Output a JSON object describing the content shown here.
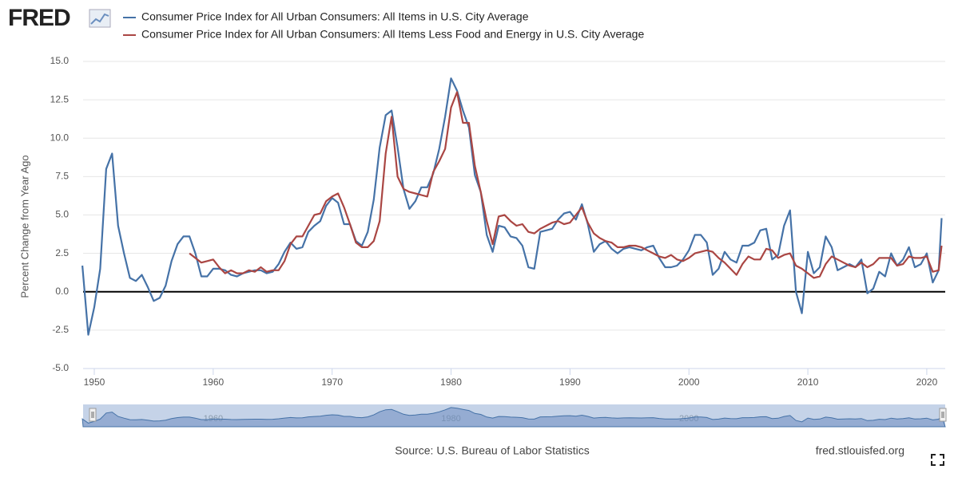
{
  "chart_data": {
    "type": "line",
    "logo": "FRED",
    "y_label": "Percent Change from Year Ago",
    "source": "Source: U.S. Bureau of Labor Statistics",
    "site": "fred.stlouisfed.org",
    "x": [
      1949,
      1949.5,
      1950,
      1950.5,
      1951,
      1951.5,
      1952,
      1952.5,
      1953,
      1953.5,
      1954,
      1954.5,
      1955,
      1955.5,
      1956,
      1956.5,
      1957,
      1957.5,
      1958,
      1958.5,
      1959,
      1959.5,
      1960,
      1960.5,
      1961,
      1961.5,
      1962,
      1962.5,
      1963,
      1963.5,
      1964,
      1964.5,
      1965,
      1965.5,
      1966,
      1966.5,
      1967,
      1967.5,
      1968,
      1968.5,
      1969,
      1969.5,
      1970,
      1970.5,
      1971,
      1971.5,
      1972,
      1972.5,
      1973,
      1973.5,
      1974,
      1974.5,
      1975,
      1975.5,
      1976,
      1976.5,
      1977,
      1977.5,
      1978,
      1978.5,
      1979,
      1979.5,
      1980,
      1980.5,
      1981,
      1981.5,
      1982,
      1982.5,
      1983,
      1983.5,
      1984,
      1984.5,
      1985,
      1985.5,
      1986,
      1986.5,
      1987,
      1987.5,
      1988,
      1988.5,
      1989,
      1989.5,
      1990,
      1990.5,
      1991,
      1991.5,
      1992,
      1992.5,
      1993,
      1993.5,
      1994,
      1994.5,
      1995,
      1995.5,
      1996,
      1996.5,
      1997,
      1997.5,
      1998,
      1998.5,
      1999,
      1999.5,
      2000,
      2000.5,
      2001,
      2001.5,
      2002,
      2002.5,
      2003,
      2003.5,
      2004,
      2004.5,
      2005,
      2005.5,
      2006,
      2006.5,
      2007,
      2007.5,
      2008,
      2008.5,
      2009,
      2009.5,
      2010,
      2010.5,
      2011,
      2011.5,
      2012,
      2012.5,
      2013,
      2013.5,
      2014,
      2014.5,
      2015,
      2015.5,
      2016,
      2016.5,
      2017,
      2017.5,
      2018,
      2018.5,
      2019,
      2019.5,
      2020,
      2020.5,
      2021,
      2021.25
    ],
    "series": [
      {
        "name": "Consumer Price Index for All Urban Consumers: All Items in U.S. City Average",
        "color": "#4572a7",
        "values": [
          1.7,
          -2.8,
          -1.0,
          1.5,
          8.0,
          9.0,
          4.3,
          2.5,
          0.9,
          0.7,
          1.1,
          0.3,
          -0.6,
          -0.4,
          0.4,
          2.0,
          3.1,
          3.6,
          3.6,
          2.5,
          1.0,
          1.0,
          1.5,
          1.5,
          1.4,
          1.1,
          1.0,
          1.2,
          1.3,
          1.4,
          1.4,
          1.2,
          1.3,
          1.8,
          2.6,
          3.2,
          2.8,
          2.9,
          3.9,
          4.3,
          4.6,
          5.6,
          6.1,
          5.8,
          4.4,
          4.4,
          3.3,
          3.0,
          3.9,
          6.0,
          9.4,
          11.5,
          11.8,
          9.4,
          6.7,
          5.4,
          5.9,
          6.8,
          6.8,
          7.7,
          9.3,
          11.4,
          13.9,
          13.1,
          11.8,
          10.7,
          7.6,
          6.5,
          3.7,
          2.6,
          4.3,
          4.2,
          3.6,
          3.5,
          3.0,
          1.6,
          1.5,
          3.9,
          4.0,
          4.1,
          4.7,
          5.1,
          5.2,
          4.7,
          5.7,
          4.4,
          2.6,
          3.1,
          3.3,
          2.8,
          2.5,
          2.8,
          2.9,
          2.8,
          2.7,
          2.9,
          3.0,
          2.2,
          1.6,
          1.6,
          1.7,
          2.1,
          2.7,
          3.7,
          3.7,
          3.2,
          1.1,
          1.5,
          2.6,
          2.1,
          1.9,
          3.0,
          3.0,
          3.2,
          4.0,
          4.1,
          2.1,
          2.4,
          4.3,
          5.3,
          0.0,
          -1.4,
          2.6,
          1.2,
          1.6,
          3.6,
          2.9,
          1.4,
          1.6,
          1.8,
          1.6,
          2.1,
          -0.1,
          0.2,
          1.3,
          1.0,
          2.5,
          1.7,
          2.1,
          2.9,
          1.6,
          1.8,
          2.5,
          0.6,
          1.4,
          4.8
        ]
      },
      {
        "name": "Consumer Price Index for All Urban Consumers: All Items Less Food and Energy in U.S. City Average",
        "color": "#aa4643",
        "values": [
          null,
          null,
          null,
          null,
          null,
          null,
          null,
          null,
          null,
          null,
          null,
          null,
          null,
          null,
          null,
          null,
          null,
          null,
          2.5,
          2.2,
          1.9,
          2.0,
          2.1,
          1.6,
          1.2,
          1.4,
          1.2,
          1.2,
          1.4,
          1.3,
          1.6,
          1.3,
          1.4,
          1.4,
          2.0,
          3.1,
          3.6,
          3.6,
          4.3,
          5.0,
          5.1,
          5.9,
          6.2,
          6.4,
          5.5,
          4.4,
          3.2,
          2.9,
          2.9,
          3.3,
          4.6,
          9.0,
          11.4,
          7.5,
          6.7,
          6.5,
          6.4,
          6.3,
          6.2,
          7.8,
          8.5,
          9.3,
          12.0,
          13.0,
          11.0,
          11.0,
          8.2,
          6.5,
          4.6,
          3.1,
          4.9,
          5.0,
          4.6,
          4.3,
          4.4,
          3.9,
          3.8,
          4.1,
          4.3,
          4.5,
          4.6,
          4.4,
          4.5,
          5.0,
          5.5,
          4.5,
          3.8,
          3.5,
          3.3,
          3.2,
          2.9,
          2.9,
          3.0,
          3.0,
          2.9,
          2.7,
          2.5,
          2.3,
          2.2,
          2.4,
          2.1,
          2.0,
          2.2,
          2.5,
          2.6,
          2.7,
          2.6,
          2.2,
          1.9,
          1.5,
          1.1,
          1.8,
          2.3,
          2.1,
          2.1,
          2.8,
          2.7,
          2.2,
          2.4,
          2.5,
          1.7,
          1.5,
          1.2,
          0.9,
          1.0,
          1.8,
          2.3,
          2.1,
          1.9,
          1.7,
          1.6,
          1.9,
          1.6,
          1.8,
          2.2,
          2.2,
          2.2,
          1.7,
          1.8,
          2.3,
          2.2,
          2.2,
          2.3,
          1.3,
          1.4,
          3.0
        ]
      }
    ],
    "xlim": [
      1949.06,
      2021.55
    ],
    "xticks": [
      1950,
      1960,
      1970,
      1980,
      1990,
      2000,
      2010,
      2020
    ],
    "ylim": [
      -5,
      15
    ],
    "yticks": [
      {
        "value": -5,
        "label": "-5.0"
      },
      {
        "value": -2.5,
        "label": "-2.5"
      },
      {
        "value": 0,
        "label": "0.0"
      },
      {
        "value": 2.5,
        "label": "2.5"
      },
      {
        "value": 5,
        "label": "5.0"
      },
      {
        "value": 7.5,
        "label": "7.5"
      },
      {
        "value": 10,
        "label": "10.0"
      },
      {
        "value": 12.5,
        "label": "12.5"
      },
      {
        "value": 15,
        "label": "15.0"
      }
    ],
    "navigator_ticks": [
      1960,
      1980,
      2000
    ],
    "grid": true
  }
}
